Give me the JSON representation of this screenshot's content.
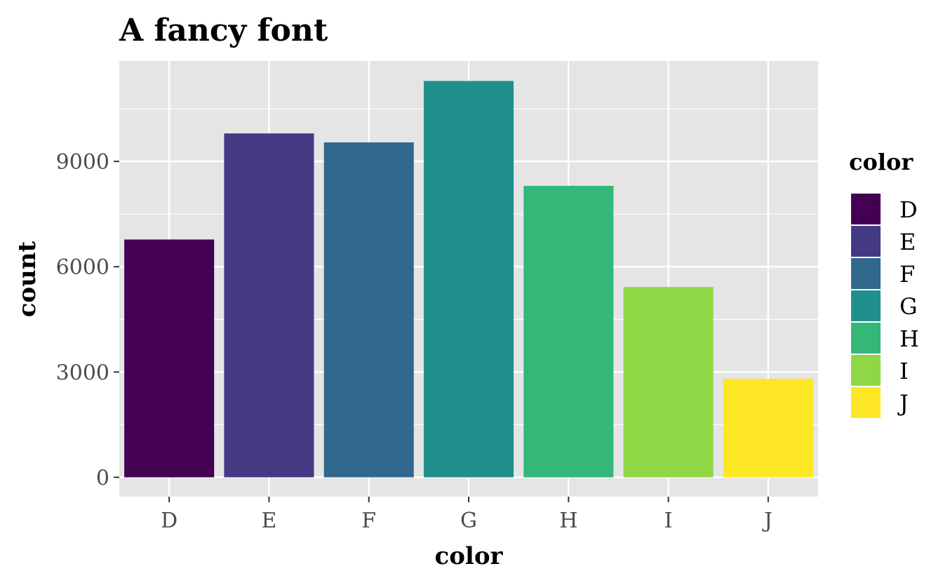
{
  "chart_data": {
    "type": "bar",
    "title": "A fancy font",
    "xlabel": "color",
    "ylabel": "count",
    "categories": [
      "D",
      "E",
      "F",
      "G",
      "H",
      "I",
      "J"
    ],
    "values": [
      6775,
      9797,
      9542,
      11292,
      8304,
      5422,
      2808
    ],
    "colors": [
      "#440154",
      "#443A83",
      "#31688E",
      "#21908C",
      "#35B779",
      "#8FD744",
      "#FDE725"
    ],
    "yticks": [
      0,
      3000,
      6000,
      9000
    ],
    "ytick_labels": [
      "0",
      "3000",
      "6000",
      "9000"
    ],
    "ylim": [
      -550,
      11860
    ],
    "grid": true,
    "panel_background": "#e5e5e5",
    "legend": {
      "title": "color",
      "placement": "right",
      "items": [
        "D",
        "E",
        "F",
        "G",
        "H",
        "I",
        "J"
      ]
    }
  }
}
